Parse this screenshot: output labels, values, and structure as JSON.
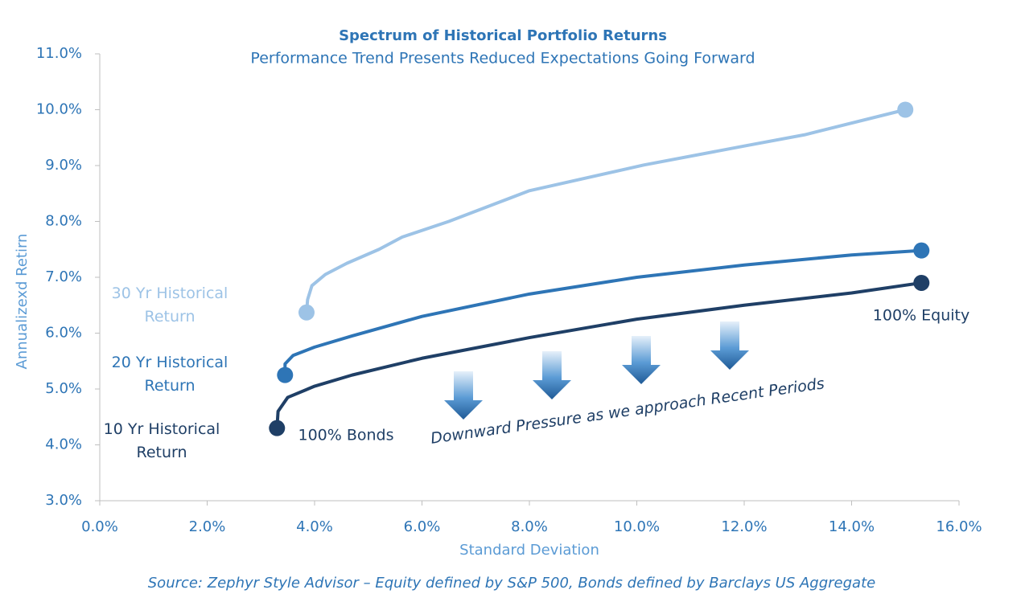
{
  "chart_data": {
    "type": "line",
    "title": "Spectrum of Historical Portfolio Returns",
    "subtitle": "Performance Trend Presents Reduced Expectations Going Forward",
    "x_label": "Standard Deviation",
    "y_label": "Annualizexd Retirn",
    "source": "Source: Zephyr Style Advisor – Equity defined by S&P 500, Bonds defined by Barclays US Aggregate",
    "annotations": [
      "100% Bonds",
      "100% Equity",
      "Downward Pressure as we approach Recent Periods"
    ],
    "xlim": [
      0,
      16
    ],
    "ylim": [
      3,
      11
    ],
    "xticks": [
      {
        "value": 0,
        "label": "0.0%"
      },
      {
        "value": 2,
        "label": "2.0%"
      },
      {
        "value": 4,
        "label": "4.0%"
      },
      {
        "value": 6,
        "label": "6.0%"
      },
      {
        "value": 8,
        "label": "8.0%"
      },
      {
        "value": 10,
        "label": "10.0%"
      },
      {
        "value": 12,
        "label": "12.0%"
      },
      {
        "value": 14,
        "label": "14.0%"
      },
      {
        "value": 16,
        "label": "16.0%"
      }
    ],
    "yticks": [
      {
        "value": 3,
        "label": "3.0%"
      },
      {
        "value": 4,
        "label": "4.0%"
      },
      {
        "value": 5,
        "label": "5.0%"
      },
      {
        "value": 6,
        "label": "6.0%"
      },
      {
        "value": 7,
        "label": "7.0%"
      },
      {
        "value": 8,
        "label": "8.0%"
      },
      {
        "value": 9,
        "label": "9.0%"
      },
      {
        "value": 10,
        "label": "10.0%"
      },
      {
        "value": 11,
        "label": "11.0%"
      }
    ],
    "series": [
      {
        "name": "30 Yr Historical Return",
        "color": "#9dc3e6",
        "x": [
          3.85,
          3.87,
          3.95,
          4.2,
          4.6,
          5.2,
          5.63,
          6.5,
          8,
          10.13,
          12,
          13.12,
          15.0
        ],
        "values": [
          6.37,
          6.6,
          6.85,
          7.05,
          7.25,
          7.5,
          7.72,
          8.0,
          8.55,
          9.01,
          9.35,
          9.55,
          10.0
        ]
      },
      {
        "name": "20 Yr Historical Return",
        "color": "#2e75b6",
        "x": [
          3.45,
          3.45,
          3.6,
          4.0,
          4.7,
          6,
          8,
          10,
          12,
          14,
          15.3
        ],
        "values": [
          5.25,
          5.45,
          5.6,
          5.75,
          5.95,
          6.3,
          6.7,
          7.0,
          7.22,
          7.4,
          7.48
        ]
      },
      {
        "name": "10 Yr Historical Return",
        "color": "#1f3f66",
        "x": [
          3.3,
          3.32,
          3.5,
          4.0,
          4.7,
          6,
          8,
          10,
          12,
          14,
          15.3
        ],
        "values": [
          4.3,
          4.6,
          4.85,
          5.05,
          5.25,
          5.55,
          5.92,
          6.25,
          6.5,
          6.72,
          6.9
        ]
      }
    ]
  }
}
